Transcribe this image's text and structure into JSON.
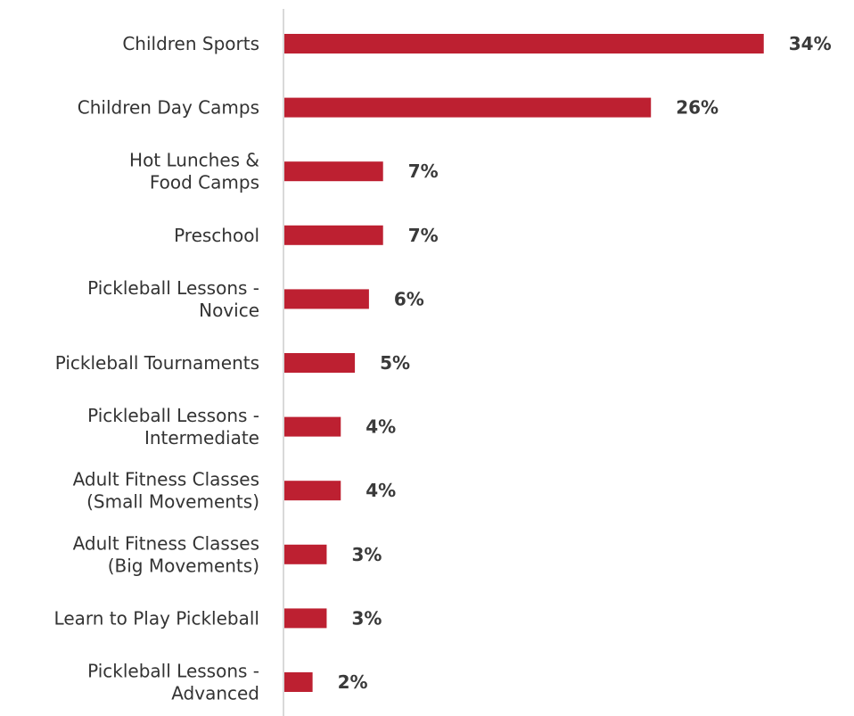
{
  "chart_data": {
    "type": "bar",
    "orientation": "horizontal",
    "categories": [
      [
        "Children Sports"
      ],
      [
        "Children Day Camps"
      ],
      [
        "Hot Lunches &",
        "Food Camps"
      ],
      [
        "Preschool"
      ],
      [
        "Pickleball Lessons -",
        "Novice"
      ],
      [
        "Pickleball Tournaments"
      ],
      [
        "Pickleball Lessons -",
        "Intermediate"
      ],
      [
        "Adult Fitness Classes",
        "(Small Movements)"
      ],
      [
        "Adult Fitness Classes",
        "(Big Movements)"
      ],
      [
        "Learn to Play Pickleball"
      ],
      [
        "Pickleball Lessons -",
        "Advanced"
      ]
    ],
    "values": [
      34,
      26,
      7,
      7,
      6,
      5,
      4,
      4,
      3,
      3,
      2
    ],
    "value_labels": [
      "34%",
      "26%",
      "7%",
      "7%",
      "6%",
      "5%",
      "4%",
      "4%",
      "3%",
      "3%",
      "2%"
    ],
    "unit": "%",
    "xlim": [
      0,
      35
    ],
    "bar_color": "#bd2031",
    "axis_color": "#d9d9d9",
    "title": "",
    "xlabel": "",
    "ylabel": "",
    "grid": false,
    "legend": "none"
  }
}
